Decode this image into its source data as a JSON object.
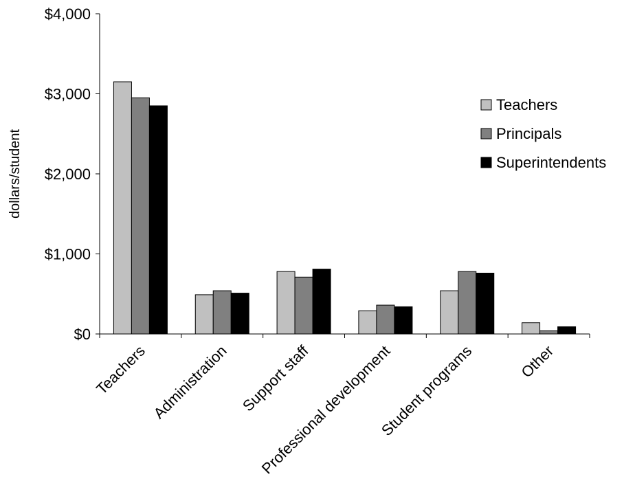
{
  "chart_data": {
    "type": "bar",
    "title": "",
    "xlabel": "",
    "ylabel": "dollars/student",
    "ylim": [
      0,
      4000
    ],
    "yticks": [
      {
        "value": 0,
        "label": "$0"
      },
      {
        "value": 1000,
        "label": "$1,000"
      },
      {
        "value": 2000,
        "label": "$2,000"
      },
      {
        "value": 3000,
        "label": "$3,000"
      },
      {
        "value": 4000,
        "label": "$4,000"
      }
    ],
    "categories": [
      "Teachers",
      "Administration",
      "Support staff",
      "Professional development",
      "Student programs",
      "Other"
    ],
    "series": [
      {
        "name": "Teachers",
        "color": "#c0c0c0",
        "values": [
          3150,
          490,
          780,
          290,
          540,
          140
        ]
      },
      {
        "name": "Principals",
        "color": "#808080",
        "values": [
          2950,
          540,
          710,
          360,
          780,
          40
        ]
      },
      {
        "name": "Superintendents",
        "color": "#000000",
        "values": [
          2850,
          510,
          810,
          340,
          760,
          90
        ]
      }
    ],
    "grid": false,
    "legend_position": "right"
  }
}
